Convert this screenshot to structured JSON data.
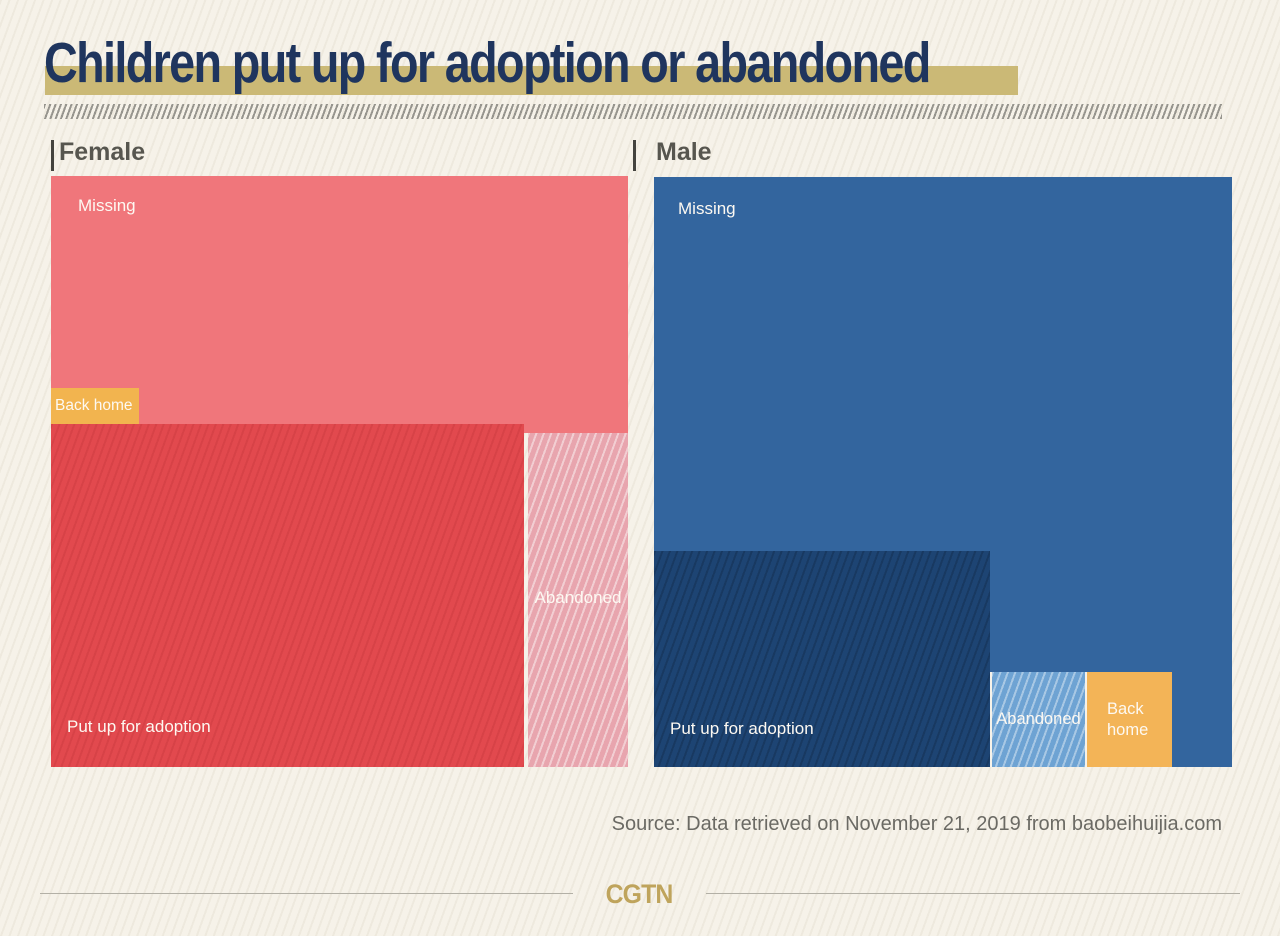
{
  "header": {
    "title": "Children put up for adoption or abandoned"
  },
  "chart_data": {
    "type": "treemap",
    "title": "Children put up for adoption or abandoned",
    "legend_position": "none",
    "value_labels_shown": false,
    "panels": [
      {
        "group": "Female",
        "blocks": [
          {
            "label": "Missing",
            "color": "#f0767b",
            "hatched": false,
            "share_pct_est": 43
          },
          {
            "label": "Back home",
            "color": "#f2b44f",
            "hatched": false,
            "share_pct_est": 1
          },
          {
            "label": "Put up for adoption",
            "color": "#e2494e",
            "hatched": true,
            "share_pct_est": 47
          },
          {
            "label": "Abandoned",
            "color": "#e8a5ae",
            "hatched": true,
            "share_pct_est": 10
          }
        ]
      },
      {
        "group": "Male",
        "blocks": [
          {
            "label": "Missing",
            "color": "#33659e",
            "hatched": false,
            "share_pct_est": 74
          },
          {
            "label": "Put up for adoption",
            "color": "#1d4473",
            "hatched": true,
            "share_pct_est": 21
          },
          {
            "label": "Abandoned",
            "color": "#6ea3d3",
            "hatched": true,
            "share_pct_est": 3
          },
          {
            "label": "Back home",
            "color": "#f3b457",
            "hatched": false,
            "share_pct_est": 2
          }
        ]
      }
    ]
  },
  "source": "Source: Data retrieved on November 21, 2019 from baobeihuijia.com",
  "footer": {
    "logo": "CGTN"
  },
  "colors": {
    "background": "#f6f2e9",
    "title_text": "#1f355e",
    "title_highlight": "#cbb976",
    "panel_header_text": "#57564f",
    "block_label_text": "#fdf9f2",
    "source_text": "#6b6a64",
    "logo_gold": "#bfa45c",
    "divider_hatch": "#97958e"
  }
}
